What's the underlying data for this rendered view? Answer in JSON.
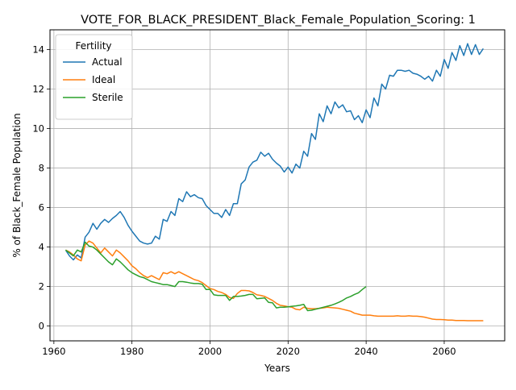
{
  "chart_data": {
    "type": "line",
    "title": "VOTE_FOR_BLACK_PRESIDENT_Black_Female_Population_Scoring: 1",
    "xlabel": "Years",
    "ylabel": "% of Black_Female Population",
    "xlim": [
      1959,
      2075.5
    ],
    "ylim": [
      -0.75,
      15
    ],
    "xticks": [
      1960,
      1980,
      2000,
      2020,
      2040,
      2060
    ],
    "yticks": [
      0,
      2,
      4,
      6,
      8,
      10,
      12,
      14
    ],
    "grid": true,
    "legend": {
      "title": "Fertility",
      "placement": "upper left"
    },
    "series": [
      {
        "name": "Actual",
        "color": "#1f77b4",
        "points": [
          [
            1963,
            3.85
          ],
          [
            1964,
            3.55
          ],
          [
            1965,
            3.35
          ],
          [
            1966,
            3.6
          ],
          [
            1967,
            3.45
          ],
          [
            1968,
            4.5
          ],
          [
            1969,
            4.75
          ],
          [
            1970,
            5.2
          ],
          [
            1971,
            4.9
          ],
          [
            1972,
            5.2
          ],
          [
            1973,
            5.4
          ],
          [
            1974,
            5.25
          ],
          [
            1975,
            5.45
          ],
          [
            1976,
            5.6
          ],
          [
            1977,
            5.8
          ],
          [
            1978,
            5.5
          ],
          [
            1979,
            5.1
          ],
          [
            1980,
            4.8
          ],
          [
            1981,
            4.55
          ],
          [
            1982,
            4.3
          ],
          [
            1983,
            4.2
          ],
          [
            1984,
            4.15
          ],
          [
            1985,
            4.2
          ],
          [
            1986,
            4.55
          ],
          [
            1987,
            4.4
          ],
          [
            1988,
            5.4
          ],
          [
            1989,
            5.3
          ],
          [
            1990,
            5.8
          ],
          [
            1991,
            5.6
          ],
          [
            1992,
            6.45
          ],
          [
            1993,
            6.3
          ],
          [
            1994,
            6.8
          ],
          [
            1995,
            6.55
          ],
          [
            1996,
            6.65
          ],
          [
            1997,
            6.5
          ],
          [
            1998,
            6.45
          ],
          [
            1999,
            6.1
          ],
          [
            2000,
            5.9
          ],
          [
            2001,
            5.7
          ],
          [
            2002,
            5.7
          ],
          [
            2003,
            5.5
          ],
          [
            2004,
            5.9
          ],
          [
            2005,
            5.6
          ],
          [
            2006,
            6.2
          ],
          [
            2007,
            6.2
          ],
          [
            2008,
            7.2
          ],
          [
            2009,
            7.4
          ],
          [
            2010,
            8.05
          ],
          [
            2011,
            8.3
          ],
          [
            2012,
            8.4
          ],
          [
            2013,
            8.8
          ],
          [
            2014,
            8.6
          ],
          [
            2015,
            8.75
          ],
          [
            2016,
            8.45
          ],
          [
            2017,
            8.25
          ],
          [
            2018,
            8.1
          ],
          [
            2019,
            7.8
          ],
          [
            2020,
            8.05
          ],
          [
            2021,
            7.75
          ],
          [
            2022,
            8.2
          ],
          [
            2023,
            8.0
          ],
          [
            2024,
            8.85
          ],
          [
            2025,
            8.6
          ],
          [
            2026,
            9.75
          ],
          [
            2027,
            9.45
          ],
          [
            2028,
            10.75
          ],
          [
            2029,
            10.35
          ],
          [
            2030,
            11.15
          ],
          [
            2031,
            10.75
          ],
          [
            2032,
            11.35
          ],
          [
            2033,
            11.05
          ],
          [
            2034,
            11.2
          ],
          [
            2035,
            10.85
          ],
          [
            2036,
            10.9
          ],
          [
            2037,
            10.45
          ],
          [
            2038,
            10.65
          ],
          [
            2039,
            10.3
          ],
          [
            2040,
            10.95
          ],
          [
            2041,
            10.55
          ],
          [
            2042,
            11.55
          ],
          [
            2043,
            11.15
          ],
          [
            2044,
            12.25
          ],
          [
            2045,
            12.0
          ],
          [
            2046,
            12.7
          ],
          [
            2047,
            12.65
          ],
          [
            2048,
            12.95
          ],
          [
            2049,
            12.95
          ],
          [
            2050,
            12.9
          ],
          [
            2051,
            12.95
          ],
          [
            2052,
            12.8
          ],
          [
            2053,
            12.75
          ],
          [
            2054,
            12.65
          ],
          [
            2055,
            12.5
          ],
          [
            2056,
            12.65
          ],
          [
            2057,
            12.4
          ],
          [
            2058,
            12.95
          ],
          [
            2059,
            12.65
          ],
          [
            2060,
            13.5
          ],
          [
            2061,
            13.05
          ],
          [
            2062,
            13.85
          ],
          [
            2063,
            13.45
          ],
          [
            2064,
            14.2
          ],
          [
            2065,
            13.7
          ],
          [
            2066,
            14.3
          ],
          [
            2067,
            13.75
          ],
          [
            2068,
            14.25
          ],
          [
            2069,
            13.75
          ],
          [
            2070,
            14.05
          ]
        ]
      },
      {
        "name": "Ideal",
        "color": "#ff7f0e",
        "points": [
          [
            1963,
            3.85
          ],
          [
            1964,
            3.75
          ],
          [
            1965,
            3.6
          ],
          [
            1966,
            3.4
          ],
          [
            1967,
            3.3
          ],
          [
            1968,
            4.1
          ],
          [
            1969,
            4.3
          ],
          [
            1970,
            4.2
          ],
          [
            1971,
            3.95
          ],
          [
            1972,
            3.7
          ],
          [
            1973,
            3.95
          ],
          [
            1974,
            3.75
          ],
          [
            1975,
            3.55
          ],
          [
            1976,
            3.85
          ],
          [
            1977,
            3.7
          ],
          [
            1978,
            3.5
          ],
          [
            1979,
            3.3
          ],
          [
            1980,
            3.05
          ],
          [
            1981,
            2.9
          ],
          [
            1982,
            2.7
          ],
          [
            1983,
            2.55
          ],
          [
            1984,
            2.45
          ],
          [
            1985,
            2.55
          ],
          [
            1986,
            2.45
          ],
          [
            1987,
            2.35
          ],
          [
            1988,
            2.7
          ],
          [
            1989,
            2.65
          ],
          [
            1990,
            2.75
          ],
          [
            1991,
            2.65
          ],
          [
            1992,
            2.75
          ],
          [
            1993,
            2.65
          ],
          [
            1994,
            2.55
          ],
          [
            1995,
            2.45
          ],
          [
            1996,
            2.35
          ],
          [
            1997,
            2.3
          ],
          [
            1998,
            2.2
          ],
          [
            1999,
            2.05
          ],
          [
            2000,
            1.9
          ],
          [
            2001,
            1.85
          ],
          [
            2002,
            1.75
          ],
          [
            2003,
            1.7
          ],
          [
            2004,
            1.6
          ],
          [
            2005,
            1.45
          ],
          [
            2006,
            1.4
          ],
          [
            2007,
            1.65
          ],
          [
            2008,
            1.8
          ],
          [
            2009,
            1.8
          ],
          [
            2010,
            1.78
          ],
          [
            2011,
            1.7
          ],
          [
            2012,
            1.58
          ],
          [
            2013,
            1.55
          ],
          [
            2014,
            1.5
          ],
          [
            2015,
            1.4
          ],
          [
            2016,
            1.3
          ],
          [
            2017,
            1.15
          ],
          [
            2018,
            1.05
          ],
          [
            2019,
            1.02
          ],
          [
            2020,
            0.98
          ],
          [
            2021,
            0.95
          ],
          [
            2022,
            0.85
          ],
          [
            2023,
            0.82
          ],
          [
            2024,
            0.95
          ],
          [
            2025,
            0.9
          ],
          [
            2026,
            0.88
          ],
          [
            2027,
            0.88
          ],
          [
            2028,
            0.9
          ],
          [
            2029,
            0.92
          ],
          [
            2030,
            0.95
          ],
          [
            2031,
            0.93
          ],
          [
            2032,
            0.92
          ],
          [
            2033,
            0.9
          ],
          [
            2034,
            0.85
          ],
          [
            2035,
            0.8
          ],
          [
            2036,
            0.75
          ],
          [
            2037,
            0.65
          ],
          [
            2038,
            0.6
          ],
          [
            2039,
            0.55
          ],
          [
            2040,
            0.55
          ],
          [
            2041,
            0.55
          ],
          [
            2042,
            0.52
          ],
          [
            2043,
            0.5
          ],
          [
            2044,
            0.5
          ],
          [
            2045,
            0.5
          ],
          [
            2046,
            0.5
          ],
          [
            2047,
            0.5
          ],
          [
            2048,
            0.52
          ],
          [
            2049,
            0.5
          ],
          [
            2050,
            0.5
          ],
          [
            2051,
            0.52
          ],
          [
            2052,
            0.5
          ],
          [
            2053,
            0.5
          ],
          [
            2054,
            0.48
          ],
          [
            2055,
            0.45
          ],
          [
            2056,
            0.4
          ],
          [
            2057,
            0.35
          ],
          [
            2058,
            0.33
          ],
          [
            2059,
            0.33
          ],
          [
            2060,
            0.32
          ],
          [
            2061,
            0.3
          ],
          [
            2062,
            0.3
          ],
          [
            2063,
            0.28
          ],
          [
            2064,
            0.28
          ],
          [
            2065,
            0.28
          ],
          [
            2066,
            0.27
          ],
          [
            2067,
            0.27
          ],
          [
            2068,
            0.27
          ],
          [
            2069,
            0.27
          ],
          [
            2070,
            0.27
          ]
        ]
      },
      {
        "name": "Sterile",
        "color": "#2ca02c",
        "points": [
          [
            1963,
            3.85
          ],
          [
            1964,
            3.7
          ],
          [
            1965,
            3.55
          ],
          [
            1966,
            3.85
          ],
          [
            1967,
            3.75
          ],
          [
            1968,
            4.25
          ],
          [
            1969,
            4.05
          ],
          [
            1970,
            4.0
          ],
          [
            1971,
            3.85
          ],
          [
            1972,
            3.65
          ],
          [
            1973,
            3.45
          ],
          [
            1974,
            3.25
          ],
          [
            1975,
            3.1
          ],
          [
            1976,
            3.4
          ],
          [
            1977,
            3.25
          ],
          [
            1978,
            3.05
          ],
          [
            1979,
            2.85
          ],
          [
            1980,
            2.7
          ],
          [
            1981,
            2.6
          ],
          [
            1982,
            2.5
          ],
          [
            1983,
            2.45
          ],
          [
            1984,
            2.35
          ],
          [
            1985,
            2.25
          ],
          [
            1986,
            2.2
          ],
          [
            1987,
            2.15
          ],
          [
            1988,
            2.1
          ],
          [
            1989,
            2.1
          ],
          [
            1990,
            2.05
          ],
          [
            1991,
            2.0
          ],
          [
            1992,
            2.25
          ],
          [
            1993,
            2.25
          ],
          [
            1994,
            2.22
          ],
          [
            1995,
            2.18
          ],
          [
            1996,
            2.15
          ],
          [
            1997,
            2.15
          ],
          [
            1998,
            2.12
          ],
          [
            1999,
            1.85
          ],
          [
            2000,
            1.85
          ],
          [
            2001,
            1.58
          ],
          [
            2002,
            1.55
          ],
          [
            2003,
            1.55
          ],
          [
            2004,
            1.55
          ],
          [
            2005,
            1.3
          ],
          [
            2006,
            1.5
          ],
          [
            2007,
            1.5
          ],
          [
            2008,
            1.52
          ],
          [
            2009,
            1.55
          ],
          [
            2010,
            1.6
          ],
          [
            2011,
            1.6
          ],
          [
            2012,
            1.38
          ],
          [
            2013,
            1.4
          ],
          [
            2014,
            1.42
          ],
          [
            2015,
            1.2
          ],
          [
            2016,
            1.18
          ],
          [
            2017,
            0.92
          ],
          [
            2018,
            0.95
          ],
          [
            2019,
            0.95
          ],
          [
            2020,
            0.97
          ],
          [
            2021,
            1.0
          ],
          [
            2022,
            1.02
          ],
          [
            2023,
            1.05
          ],
          [
            2024,
            1.1
          ],
          [
            2025,
            0.78
          ],
          [
            2026,
            0.8
          ],
          [
            2027,
            0.85
          ],
          [
            2028,
            0.9
          ],
          [
            2029,
            0.95
          ],
          [
            2030,
            1.0
          ],
          [
            2031,
            1.05
          ],
          [
            2032,
            1.12
          ],
          [
            2033,
            1.2
          ],
          [
            2034,
            1.3
          ],
          [
            2035,
            1.42
          ],
          [
            2036,
            1.5
          ],
          [
            2037,
            1.6
          ],
          [
            2038,
            1.68
          ],
          [
            2039,
            1.85
          ],
          [
            2040,
            2.0
          ]
        ]
      }
    ]
  }
}
